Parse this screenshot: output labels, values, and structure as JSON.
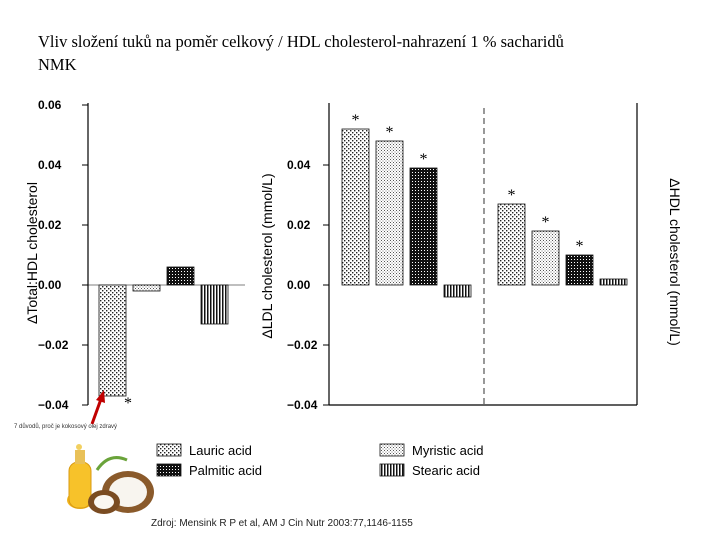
{
  "title": {
    "line1": "Vliv složení tuků na poměr celkový / HDL cholesterol-nahrazení  1 % sacharidů",
    "line2": "NMK"
  },
  "note": "7 důvodů, proč je kokosový olej zdravý",
  "source": "Zdroj: Mensink R P et al, AM J Cin Nutr 2003:77,1146-1155",
  "icons": {
    "coconut_oil": "coconut-oil-bottle-image",
    "arrow": "red-arrow-icon"
  },
  "colors": {
    "arrow": "#c00000",
    "bar_fill": "#ffffff",
    "bar_stroke": "#111111"
  },
  "chart_data": [
    {
      "type": "bar",
      "ylabel": "ΔTotal:HDL cholesterol",
      "ylim": [
        -0.04,
        0.06
      ],
      "yticks": [
        "0.06",
        "0.04",
        "0.02",
        "0.00",
        "−0.02",
        "−0.04"
      ],
      "grid": false,
      "series": [
        {
          "name": "Lauric acid",
          "values": [
            -0.037
          ],
          "annotation": "*"
        },
        {
          "name": "Myristic acid",
          "values": [
            -0.002
          ],
          "annotation": ""
        },
        {
          "name": "Palmitic acid",
          "values": [
            0.006
          ],
          "annotation": ""
        },
        {
          "name": "Stearic acid",
          "values": [
            -0.013
          ],
          "annotation": ""
        }
      ]
    },
    {
      "type": "bar",
      "ylabel": "ΔLDL cholesterol (mmol/L)",
      "ylim": [
        -0.04,
        0.06
      ],
      "yticks": [
        "0.04",
        "0.02",
        "0.00",
        "−0.02",
        "−0.04"
      ],
      "grid": false,
      "series": [
        {
          "name": "Lauric acid",
          "values": [
            0.052
          ],
          "annotation": "*"
        },
        {
          "name": "Myristic acid",
          "values": [
            0.048
          ],
          "annotation": "*"
        },
        {
          "name": "Palmitic acid",
          "values": [
            0.039
          ],
          "annotation": "*"
        },
        {
          "name": "Stearic acid",
          "values": [
            -0.004
          ],
          "annotation": ""
        }
      ]
    },
    {
      "type": "bar",
      "ylabel": "ΔHDL cholesterol  (mmol/L)",
      "ylim": [
        -0.04,
        0.06
      ],
      "grid": false,
      "series": [
        {
          "name": "Lauric acid",
          "values": [
            0.027
          ],
          "annotation": "*"
        },
        {
          "name": "Myristic acid",
          "values": [
            0.018
          ],
          "annotation": "*"
        },
        {
          "name": "Palmitic acid",
          "values": [
            0.01
          ],
          "annotation": "*"
        },
        {
          "name": "Stearic acid",
          "values": [
            0.002
          ],
          "annotation": ""
        }
      ]
    }
  ],
  "legend": {
    "placement": "bottom",
    "items": [
      "Lauric acid",
      "Palmitic acid",
      "Myristic acid",
      "Stearic acid"
    ]
  }
}
